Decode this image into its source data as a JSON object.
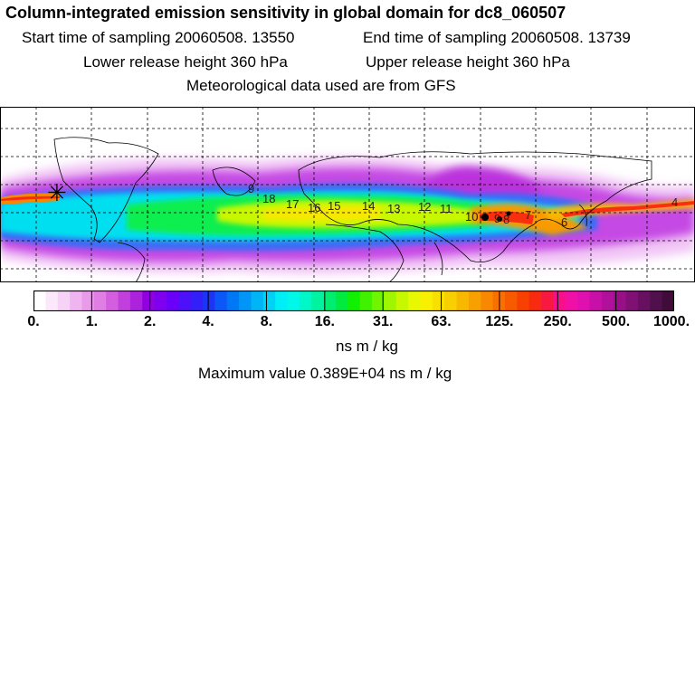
{
  "header": {
    "title": "Column-integrated emission sensitivity in global domain for dc8_060507",
    "start_time": "Start time of sampling 20060508. 13550",
    "end_time": "End time of sampling 20060508. 13739",
    "lower_height": "Lower release height  360 hPa",
    "upper_height": "Upper release height  360 hPa",
    "met_data": "Meteorological data used are from GFS"
  },
  "map": {
    "labels": [
      "9",
      "18",
      "17",
      "16",
      "15",
      "14",
      "13",
      "12",
      "11",
      "10",
      "9",
      "8",
      "7",
      "6",
      "4"
    ],
    "release_marker": "✳"
  },
  "colorbar": {
    "tick_labels": [
      "0.",
      "1.",
      "2.",
      "4.",
      "8.",
      "16.",
      "31.",
      "63.",
      "125.",
      "250.",
      "500.",
      "1000."
    ],
    "colors": [
      "#ffffff",
      "#fbe9fb",
      "#f6d3f6",
      "#f0b5f0",
      "#e99be9",
      "#e07ee4",
      "#d35fe0",
      "#c13fdd",
      "#ac22dd",
      "#9100e1",
      "#7e00ee",
      "#6a00f8",
      "#4d10f8",
      "#3320f8",
      "#1c34f6",
      "#0b58f6",
      "#0078f6",
      "#0095f6",
      "#00b5f6",
      "#00d2f6",
      "#00eef6",
      "#00f8e8",
      "#00f8c8",
      "#00f4a0",
      "#00ee70",
      "#00ea40",
      "#10f000",
      "#40f200",
      "#70f400",
      "#a0f600",
      "#c8f800",
      "#e8f800",
      "#f8f000",
      "#f8e000",
      "#f8cf00",
      "#f8b800",
      "#f8a000",
      "#f88800",
      "#f87000",
      "#f85a00",
      "#f84000",
      "#f82a10",
      "#f81840",
      "#f8108a",
      "#f010a8",
      "#e010b0",
      "#c810a8",
      "#b0109a",
      "#981088",
      "#801074",
      "#681060",
      "#50104c",
      "#400c3a"
    ],
    "units": "ns m / kg"
  },
  "footer": {
    "max_value": "Maximum value  0.389E+04 ns m / kg"
  }
}
